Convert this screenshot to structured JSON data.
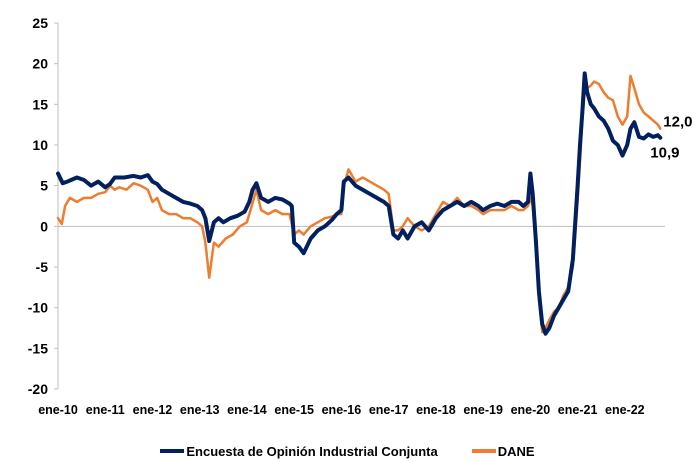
{
  "chart_data": {
    "type": "line",
    "title": "",
    "xlabel": "",
    "ylabel": "",
    "ylim": [
      -20,
      25
    ],
    "y_ticks": [
      25,
      20,
      15,
      10,
      5,
      0,
      -5,
      -10,
      -15,
      -20
    ],
    "x_tick_labels": [
      "ene-10",
      "ene-11",
      "ene-12",
      "ene-13",
      "ene-14",
      "ene-15",
      "ene-16",
      "ene-17",
      "ene-18",
      "ene-19",
      "ene-20",
      "ene-21",
      "ene-22"
    ],
    "x_range_years": [
      2010.0,
      2022.85
    ],
    "grid": false,
    "legend_position": "bottom",
    "series": [
      {
        "name": "Encuesta de Opinión Industrial Conjunta",
        "color": "#002060",
        "x": [
          2010.0,
          2010.1,
          2010.2,
          2010.4,
          2010.55,
          2010.7,
          2010.85,
          2011.0,
          2011.1,
          2011.2,
          2011.4,
          2011.6,
          2011.75,
          2011.9,
          2012.0,
          2012.1,
          2012.2,
          2012.35,
          2012.5,
          2012.65,
          2012.8,
          2012.95,
          2013.05,
          2013.12,
          2013.2,
          2013.3,
          2013.4,
          2013.5,
          2013.65,
          2013.8,
          2013.95,
          2014.05,
          2014.12,
          2014.2,
          2014.3,
          2014.45,
          2014.6,
          2014.75,
          2014.9,
          2014.95,
          2015.0,
          2015.1,
          2015.2,
          2015.35,
          2015.5,
          2015.65,
          2015.8,
          2015.9,
          2016.0,
          2016.05,
          2016.15,
          2016.3,
          2016.45,
          2016.6,
          2016.75,
          2016.9,
          2017.0,
          2017.1,
          2017.2,
          2017.3,
          2017.4,
          2017.55,
          2017.7,
          2017.85,
          2018.0,
          2018.15,
          2018.3,
          2018.45,
          2018.6,
          2018.75,
          2018.9,
          2019.0,
          2019.15,
          2019.3,
          2019.45,
          2019.6,
          2019.75,
          2019.85,
          2019.95,
          2020.0,
          2020.05,
          2020.12,
          2020.18,
          2020.25,
          2020.32,
          2020.4,
          2020.5,
          2020.6,
          2020.7,
          2020.8,
          2020.9,
          2021.0,
          2021.05,
          2021.1,
          2021.15,
          2021.2,
          2021.28,
          2021.35,
          2021.45,
          2021.55,
          2021.65,
          2021.75,
          2021.85,
          2021.95,
          2022.05,
          2022.12,
          2022.2,
          2022.3,
          2022.4,
          2022.5,
          2022.6,
          2022.7,
          2022.75
        ],
        "y": [
          6.5,
          5.3,
          5.5,
          6.0,
          5.7,
          5.0,
          5.5,
          4.8,
          5.2,
          6.0,
          6.0,
          6.2,
          6.0,
          6.3,
          5.5,
          5.2,
          4.5,
          4.0,
          3.5,
          3.0,
          2.8,
          2.5,
          2.0,
          1.0,
          -1.8,
          0.5,
          1.0,
          0.5,
          1.0,
          1.3,
          1.8,
          3.0,
          4.5,
          5.3,
          3.5,
          3.0,
          3.5,
          3.3,
          2.8,
          2.5,
          -2.0,
          -2.5,
          -3.3,
          -1.5,
          -0.5,
          0.0,
          0.8,
          1.5,
          2.0,
          5.5,
          6.0,
          5.0,
          4.5,
          4.0,
          3.5,
          3.0,
          2.5,
          -1.0,
          -1.5,
          -0.5,
          -1.5,
          0.0,
          0.5,
          -0.5,
          1.0,
          2.0,
          2.5,
          3.0,
          2.5,
          3.0,
          2.5,
          2.0,
          2.5,
          2.8,
          2.5,
          3.0,
          3.0,
          2.5,
          3.0,
          6.5,
          4.0,
          -2.0,
          -8.0,
          -12.0,
          -13.2,
          -12.5,
          -11.0,
          -10.0,
          -9.0,
          -8.0,
          -4.0,
          5.0,
          10.0,
          14.0,
          18.8,
          16.5,
          15.0,
          14.5,
          13.5,
          13.0,
          12.0,
          10.5,
          10.0,
          8.7,
          10.0,
          12.0,
          12.8,
          11.0,
          10.8,
          11.3,
          11.0,
          11.2,
          10.9
        ]
      },
      {
        "name": "DANE",
        "color": "#ED7D31",
        "x": [
          2010.0,
          2010.08,
          2010.15,
          2010.25,
          2010.4,
          2010.55,
          2010.7,
          2010.85,
          2011.0,
          2011.1,
          2011.2,
          2011.3,
          2011.45,
          2011.6,
          2011.75,
          2011.9,
          2012.0,
          2012.1,
          2012.2,
          2012.35,
          2012.5,
          2012.65,
          2012.8,
          2012.95,
          2013.05,
          2013.12,
          2013.2,
          2013.3,
          2013.4,
          2013.55,
          2013.7,
          2013.85,
          2014.0,
          2014.1,
          2014.2,
          2014.3,
          2014.45,
          2014.6,
          2014.75,
          2014.9,
          2015.0,
          2015.1,
          2015.2,
          2015.35,
          2015.5,
          2015.65,
          2015.8,
          2015.9,
          2016.0,
          2016.05,
          2016.15,
          2016.3,
          2016.45,
          2016.6,
          2016.75,
          2016.9,
          2017.0,
          2017.1,
          2017.2,
          2017.3,
          2017.4,
          2017.55,
          2017.7,
          2017.85,
          2018.0,
          2018.15,
          2018.3,
          2018.45,
          2018.6,
          2018.75,
          2018.9,
          2019.0,
          2019.15,
          2019.3,
          2019.45,
          2019.6,
          2019.75,
          2019.85,
          2019.95,
          2020.0,
          2020.05,
          2020.12,
          2020.18,
          2020.25,
          2020.32,
          2020.4,
          2020.5,
          2020.6,
          2020.7,
          2020.8,
          2020.9,
          2021.0,
          2021.05,
          2021.1,
          2021.15,
          2021.2,
          2021.28,
          2021.35,
          2021.45,
          2021.55,
          2021.65,
          2021.75,
          2021.85,
          2021.95,
          2022.05,
          2022.12,
          2022.2,
          2022.3,
          2022.4,
          2022.5,
          2022.6,
          2022.7,
          2022.75
        ],
        "y": [
          1.0,
          0.3,
          2.5,
          3.5,
          3.0,
          3.5,
          3.5,
          4.0,
          4.2,
          5.0,
          4.5,
          4.8,
          4.5,
          5.3,
          5.0,
          4.5,
          3.0,
          3.5,
          2.0,
          1.5,
          1.5,
          1.0,
          1.0,
          0.5,
          0.0,
          -2.0,
          -6.3,
          -2.0,
          -2.5,
          -1.5,
          -1.0,
          0.0,
          0.5,
          2.5,
          4.5,
          2.0,
          1.5,
          2.0,
          1.5,
          1.5,
          -1.0,
          -0.5,
          -1.0,
          0.0,
          0.5,
          1.0,
          1.2,
          1.5,
          1.5,
          5.0,
          7.0,
          5.5,
          6.0,
          5.5,
          5.0,
          4.5,
          4.0,
          -0.5,
          -0.5,
          0.0,
          1.0,
          0.0,
          -0.5,
          0.0,
          1.5,
          3.0,
          2.5,
          3.5,
          2.5,
          2.5,
          2.0,
          1.5,
          2.0,
          2.0,
          2.0,
          2.5,
          2.0,
          2.0,
          2.5,
          3.5,
          2.5,
          -2.0,
          -9.0,
          -13.0,
          -12.5,
          -11.5,
          -10.5,
          -10.0,
          -8.5,
          -7.5,
          -5.0,
          3.0,
          8.0,
          13.0,
          16.5,
          17.0,
          17.3,
          17.8,
          17.5,
          16.5,
          15.8,
          15.5,
          13.5,
          12.5,
          13.5,
          18.5,
          17.0,
          15.0,
          14.0,
          13.5,
          13.0,
          12.5,
          12.0
        ]
      }
    ],
    "end_labels": [
      "12,0",
      "10,9"
    ]
  }
}
